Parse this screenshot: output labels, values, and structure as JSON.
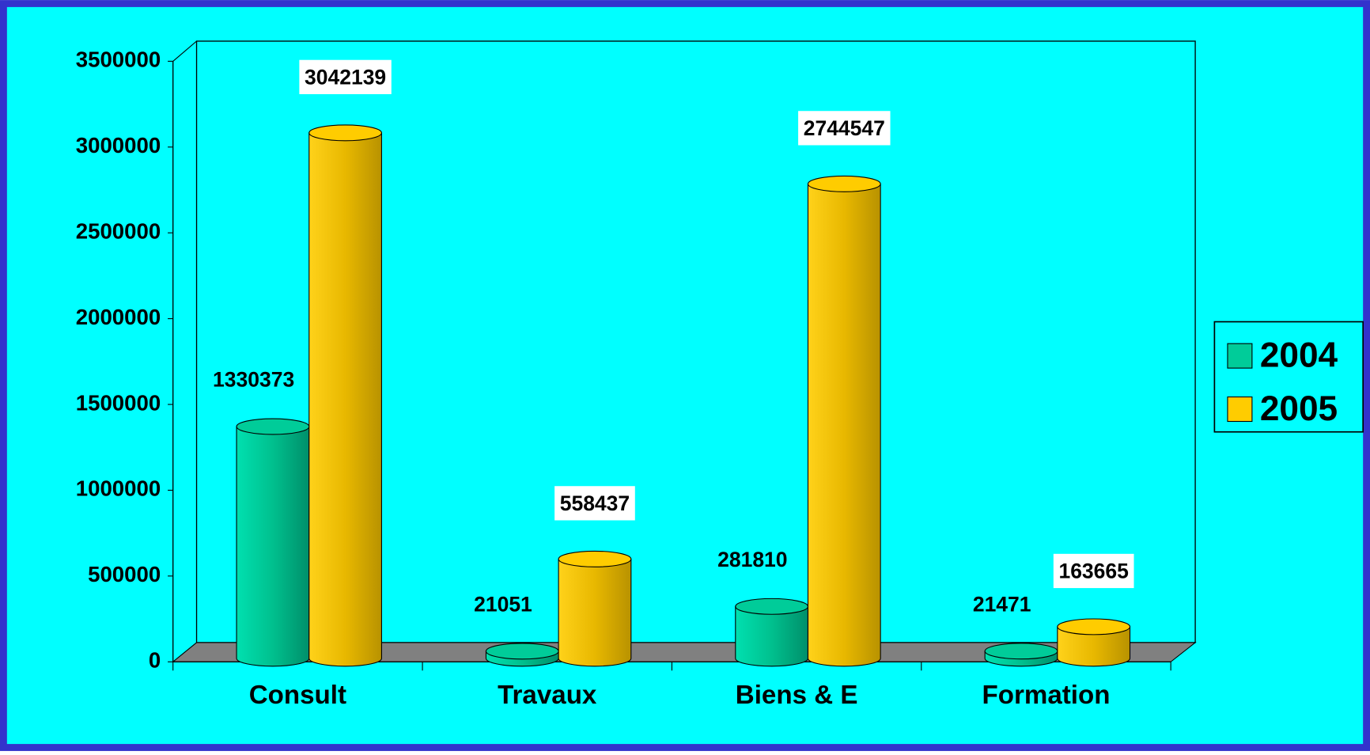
{
  "chart_data": {
    "type": "bar",
    "categories": [
      "Consult",
      "Travaux",
      "Biens & E",
      "Formation"
    ],
    "series": [
      {
        "name": "2004",
        "color": "#00cc99",
        "values": [
          1330373,
          21051,
          281810,
          21471
        ]
      },
      {
        "name": "2005",
        "color": "#ffcc00",
        "values": [
          3042139,
          558437,
          2744547,
          163665
        ]
      }
    ],
    "ylim": [
      0,
      3500000
    ],
    "yticks": [
      0,
      500000,
      1000000,
      1500000,
      2000000,
      2500000,
      3000000,
      3500000
    ],
    "legend": "right"
  }
}
